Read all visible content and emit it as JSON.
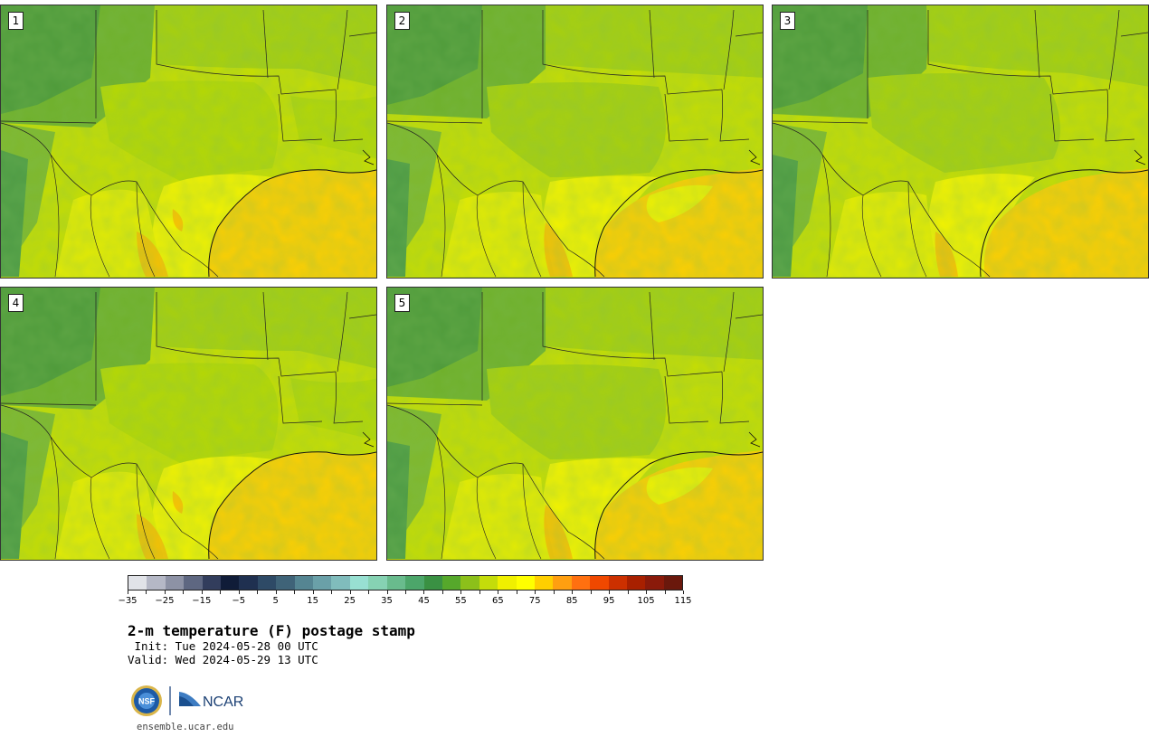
{
  "panels": [
    {
      "label": "1"
    },
    {
      "label": "2"
    },
    {
      "label": "3"
    },
    {
      "label": "4"
    },
    {
      "label": "5"
    }
  ],
  "colorbar": {
    "colors": [
      "#e1e3e8",
      "#b5b8c6",
      "#8d92a5",
      "#5e6781",
      "#323d5c",
      "#101c38",
      "#1f3050",
      "#2e4a66",
      "#3f6378",
      "#558592",
      "#6aa0a8",
      "#80bcbc",
      "#98e0d2",
      "#86d2b3",
      "#69bb8d",
      "#4ca66a",
      "#3a9143",
      "#56a82b",
      "#8cc01a",
      "#c4dc0a",
      "#f0f000",
      "#ffff00",
      "#ffcf00",
      "#ff9f10",
      "#ff7010",
      "#f04800",
      "#cc3000",
      "#a82000",
      "#8a1a0a",
      "#6a180c"
    ],
    "tick_labels": [
      "−35",
      "−25",
      "−15",
      "−5",
      "5",
      "15",
      "25",
      "35",
      "45",
      "55",
      "65",
      "75",
      "85",
      "95",
      "105",
      "115"
    ]
  },
  "title": "2-m temperature (F) postage stamp",
  "init_line": " Init: Tue 2024-05-28 00 UTC",
  "valid_line": "Valid: Wed 2024-05-29 13 UTC",
  "logos": {
    "nsf": "NSF",
    "ncar": "NCAR"
  },
  "url": "ensemble.ucar.edu"
}
